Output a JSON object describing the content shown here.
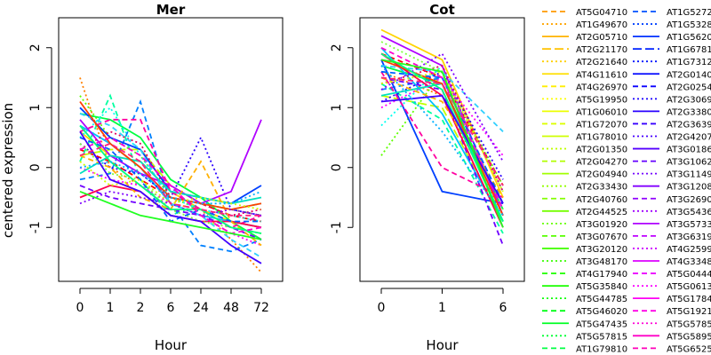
{
  "chart_data": [
    {
      "type": "line",
      "title": "Mer",
      "xlabel": "Hour",
      "ylabel": "centered expression",
      "x": [
        "0",
        "1",
        "2",
        "6",
        "24",
        "48",
        "72"
      ],
      "ylim": [
        -1.9,
        2.5
      ],
      "y_ticks": [
        "-1",
        "0",
        "1",
        "2"
      ],
      "grid": false,
      "series": [
        {
          "values": [
            0.3,
            0.1,
            -0.2,
            -0.5,
            -0.6,
            -0.8,
            -0.9
          ]
        },
        {
          "values": [
            1.5,
            0.0,
            -0.3,
            -0.6,
            -0.7,
            -1.2,
            -1.75
          ]
        },
        {
          "values": [
            0.6,
            0.2,
            0.1,
            -0.4,
            -0.7,
            -0.9,
            -1.0
          ]
        },
        {
          "values": [
            0.2,
            0.3,
            0.3,
            -0.3,
            -0.6,
            -0.7,
            -0.8
          ]
        },
        {
          "values": [
            1.2,
            0.5,
            0.2,
            -0.5,
            -0.7,
            -1.0,
            -1.1
          ]
        },
        {
          "values": [
            0.9,
            0.8,
            0.5,
            -0.2,
            -0.5,
            -0.9,
            -1.2
          ]
        },
        {
          "values": [
            0.1,
            1.2,
            -0.2,
            -0.8,
            -0.6,
            -0.7,
            -0.6
          ]
        },
        {
          "values": [
            0.5,
            1.0,
            0.2,
            -0.5,
            -0.7,
            -0.8,
            -0.9
          ]
        },
        {
          "values": [
            0.7,
            0.4,
            0.0,
            -0.6,
            -0.8,
            -0.9,
            -1.0
          ]
        },
        {
          "values": [
            -0.2,
            -0.1,
            1.1,
            -0.6,
            -1.3,
            -1.4,
            -1.2
          ]
        },
        {
          "values": [
            1.0,
            0.5,
            0.3,
            -0.4,
            -0.5,
            -0.6,
            -0.3
          ]
        },
        {
          "values": [
            0.4,
            0.0,
            -0.1,
            -0.5,
            0.5,
            -0.7,
            -0.8
          ]
        },
        {
          "values": [
            -0.3,
            -0.5,
            -0.6,
            -0.7,
            -0.8,
            -1.0,
            -1.2
          ]
        },
        {
          "values": [
            0.8,
            0.2,
            -0.1,
            -0.3,
            -0.6,
            -0.4,
            0.8
          ]
        },
        {
          "values": [
            0.0,
            -0.2,
            -0.3,
            -0.6,
            -0.8,
            -1.1,
            -1.3
          ]
        },
        {
          "values": [
            0.6,
            0.8,
            0.8,
            -0.4,
            -0.7,
            -1.0,
            -0.8
          ]
        },
        {
          "values": [
            -0.5,
            -0.3,
            -0.4,
            -0.8,
            -0.9,
            -0.9,
            -1.0
          ]
        },
        {
          "values": [
            0.3,
            0.6,
            0.4,
            -0.5,
            -0.6,
            -0.8,
            -0.7
          ]
        },
        {
          "values": [
            0.9,
            0.7,
            0.3,
            -0.6,
            -0.8,
            -1.2,
            -1.5
          ]
        },
        {
          "values": [
            -0.1,
            0.2,
            0.1,
            -0.4,
            -0.5,
            -0.6,
            -0.5
          ]
        },
        {
          "values": [
            0.4,
            -0.1,
            -0.2,
            -0.7,
            -0.9,
            -1.0,
            -1.1
          ]
        },
        {
          "values": [
            0.2,
            0.0,
            -0.5,
            -0.7,
            0.1,
            -0.9,
            -1.3
          ]
        },
        {
          "values": [
            1.1,
            0.4,
            0.0,
            -0.5,
            -0.6,
            -0.7,
            -0.6
          ]
        },
        {
          "values": [
            -0.6,
            -0.4,
            -0.5,
            -0.6,
            -0.8,
            -0.7,
            -0.8
          ]
        },
        {
          "values": [
            0.5,
            0.3,
            -0.2,
            -0.9,
            -0.7,
            -0.9,
            -0.9
          ]
        },
        {
          "values": [
            0.7,
            0.1,
            -0.3,
            -0.7,
            -0.7,
            -1.0,
            -1.1
          ]
        },
        {
          "values": [
            0.1,
            -0.3,
            -0.2,
            -0.6,
            -0.5,
            -0.6,
            -0.7
          ]
        },
        {
          "values": [
            0.3,
            0.5,
            0.2,
            -0.3,
            -0.8,
            -1.1,
            -1.0
          ]
        },
        {
          "values": [
            0.6,
            -0.2,
            -0.4,
            -0.8,
            -0.9,
            -1.3,
            -1.6
          ]
        },
        {
          "values": [
            0.0,
            0.1,
            -0.1,
            -0.5,
            -0.6,
            -0.6,
            -0.4
          ]
        },
        {
          "values": [
            0.2,
            0.4,
            0.1,
            -0.6,
            -0.7,
            -0.8,
            -0.8
          ]
        },
        {
          "values": [
            -0.4,
            -0.6,
            -0.8,
            -0.9,
            -1.0,
            -1.1,
            -1.2
          ]
        }
      ]
    },
    {
      "type": "line",
      "title": "Cot",
      "xlabel": "Hour",
      "ylabel": "",
      "x": [
        "0",
        "1",
        "6"
      ],
      "ylim": [
        -1.9,
        2.5
      ],
      "y_ticks": [
        "-1",
        "0",
        "1",
        "2"
      ],
      "grid": false,
      "series": [
        {
          "values": [
            1.9,
            1.5,
            -0.3
          ]
        },
        {
          "values": [
            1.6,
            1.2,
            -0.8
          ]
        },
        {
          "values": [
            2.3,
            1.8,
            -0.5
          ]
        },
        {
          "values": [
            1.2,
            1.0,
            -0.9
          ]
        },
        {
          "values": [
            0.2,
            1.6,
            -0.3
          ]
        },
        {
          "values": [
            1.7,
            1.4,
            -0.7
          ]
        },
        {
          "values": [
            1.4,
            0.8,
            -1.1
          ]
        },
        {
          "values": [
            0.7,
            1.7,
            -0.4
          ]
        },
        {
          "values": [
            2.0,
            0.9,
            -0.9
          ]
        },
        {
          "values": [
            1.3,
            1.5,
            -0.6
          ]
        },
        {
          "values": [
            1.8,
            -0.4,
            -0.6
          ]
        },
        {
          "values": [
            1.1,
            1.6,
            -0.2
          ]
        },
        {
          "values": [
            1.5,
            1.3,
            -1.3
          ]
        },
        {
          "values": [
            2.2,
            1.7,
            -0.8
          ]
        },
        {
          "values": [
            1.0,
            1.5,
            0.2
          ]
        },
        {
          "values": [
            1.6,
            0.0,
            -0.5
          ]
        },
        {
          "values": [
            1.9,
            1.2,
            -1.0
          ]
        },
        {
          "values": [
            1.4,
            1.7,
            -0.4
          ]
        },
        {
          "values": [
            1.7,
            1.6,
            0.6
          ]
        },
        {
          "values": [
            1.2,
            1.4,
            -0.9
          ]
        },
        {
          "values": [
            2.1,
            1.6,
            -0.7
          ]
        },
        {
          "values": [
            1.5,
            1.1,
            -0.5
          ]
        },
        {
          "values": [
            1.8,
            1.4,
            -0.8
          ]
        },
        {
          "values": [
            1.3,
            1.9,
            0.1
          ]
        },
        {
          "values": [
            1.6,
            1.5,
            -0.6
          ]
        },
        {
          "values": [
            1.9,
            1.3,
            -0.9
          ]
        },
        {
          "values": [
            1.4,
            1.6,
            -0.4
          ]
        },
        {
          "values": [
            2.0,
            1.5,
            -0.7
          ]
        },
        {
          "values": [
            1.1,
            1.2,
            -0.6
          ]
        },
        {
          "values": [
            1.7,
            0.6,
            -0.8
          ]
        },
        {
          "values": [
            1.5,
            1.4,
            -0.3
          ]
        },
        {
          "values": [
            1.8,
            1.6,
            -1.0
          ]
        }
      ]
    }
  ],
  "line_styles": [
    "dashed",
    "dotted",
    "solid",
    "longdash",
    "dotted",
    "solid",
    "dashed",
    "dotted",
    "solid",
    "dashed",
    "solid",
    "dotted",
    "dashed",
    "solid",
    "dotted",
    "dashed",
    "solid",
    "dotted",
    "dashed",
    "solid",
    "dotted",
    "dashed",
    "solid",
    "dotted",
    "dashed",
    "solid",
    "dotted",
    "dashed",
    "solid",
    "dotted",
    "dashed",
    "solid"
  ],
  "legend": {
    "placement": "right",
    "col1": [
      {
        "label": "AT5G04710",
        "color": "#ff9900",
        "style": "dashed"
      },
      {
        "label": "AT1G49670",
        "color": "#ffa500",
        "style": "dotted"
      },
      {
        "label": "AT2G05710",
        "color": "#ffb300",
        "style": "solid"
      },
      {
        "label": "AT2G21170",
        "color": "#ffc200",
        "style": "longdash"
      },
      {
        "label": "AT2G21640",
        "color": "#ffd000",
        "style": "dotted"
      },
      {
        "label": "AT4G11610",
        "color": "#ffdf00",
        "style": "solid"
      },
      {
        "label": "AT4G26970",
        "color": "#ffee00",
        "style": "dashed"
      },
      {
        "label": "AT5G19950",
        "color": "#fbff00",
        "style": "dotted"
      },
      {
        "label": "AT1G06010",
        "color": "#ecff00",
        "style": "solid"
      },
      {
        "label": "AT1G72070",
        "color": "#ddff00",
        "style": "dashed"
      },
      {
        "label": "AT1G78010",
        "color": "#cfff00",
        "style": "solid"
      },
      {
        "label": "AT2G01350",
        "color": "#c0ff00",
        "style": "dotted"
      },
      {
        "label": "AT2G04270",
        "color": "#b1ff00",
        "style": "dashed"
      },
      {
        "label": "AT2G04940",
        "color": "#a2ff00",
        "style": "solid"
      },
      {
        "label": "AT2G33430",
        "color": "#93ff00",
        "style": "dotted"
      },
      {
        "label": "AT2G40760",
        "color": "#84ff00",
        "style": "dashed"
      },
      {
        "label": "AT2G44525",
        "color": "#75ff00",
        "style": "solid"
      },
      {
        "label": "AT3G01920",
        "color": "#66ff00",
        "style": "dotted"
      },
      {
        "label": "AT3G07670",
        "color": "#57ff00",
        "style": "dashed"
      },
      {
        "label": "AT3G20120",
        "color": "#48ff00",
        "style": "solid"
      },
      {
        "label": "AT3G48170",
        "color": "#39ff00",
        "style": "dotted"
      },
      {
        "label": "AT4G17940",
        "color": "#2aff00",
        "style": "dashed"
      },
      {
        "label": "AT5G35840",
        "color": "#1bff00",
        "style": "solid"
      },
      {
        "label": "AT5G44785",
        "color": "#0cff06",
        "style": "dotted"
      },
      {
        "label": "AT5G46020",
        "color": "#00ff15",
        "style": "dashed"
      },
      {
        "label": "AT5G47435",
        "color": "#00ff24",
        "style": "solid"
      },
      {
        "label": "AT5G57815",
        "color": "#00ff33",
        "style": "dotted"
      },
      {
        "label": "AT1G79810",
        "color": "#00ff42",
        "style": "dashed"
      }
    ],
    "col2": [
      {
        "label": "AT1G5272",
        "color": "#0050ff",
        "style": "dashed"
      },
      {
        "label": "AT1G5328",
        "color": "#0041ff",
        "style": "dotted"
      },
      {
        "label": "AT1G5620",
        "color": "#0032ff",
        "style": "solid"
      },
      {
        "label": "AT1G6781",
        "color": "#0023ff",
        "style": "longdash"
      },
      {
        "label": "AT1G7312",
        "color": "#0014ff",
        "style": "dotted"
      },
      {
        "label": "AT2G0140",
        "color": "#0005ff",
        "style": "solid"
      },
      {
        "label": "AT2G0254",
        "color": "#0a00ff",
        "style": "dashed"
      },
      {
        "label": "AT2G3069",
        "color": "#1900ff",
        "style": "dotted"
      },
      {
        "label": "AT2G3380",
        "color": "#2800ff",
        "style": "solid"
      },
      {
        "label": "AT2G3639",
        "color": "#3700ff",
        "style": "dashed"
      },
      {
        "label": "AT2G4207",
        "color": "#4600ff",
        "style": "dotted"
      },
      {
        "label": "AT3G0186",
        "color": "#5500ff",
        "style": "solid"
      },
      {
        "label": "AT3G1062",
        "color": "#6400ff",
        "style": "dashed"
      },
      {
        "label": "AT3G1149",
        "color": "#7300ff",
        "style": "dotted"
      },
      {
        "label": "AT3G1208",
        "color": "#8200ff",
        "style": "solid"
      },
      {
        "label": "AT3G2690",
        "color": "#9100ff",
        "style": "dashed"
      },
      {
        "label": "AT3G5436",
        "color": "#a000ff",
        "style": "dotted"
      },
      {
        "label": "AT3G5733",
        "color": "#af00ff",
        "style": "solid"
      },
      {
        "label": "AT3G6319",
        "color": "#be00ff",
        "style": "dashed"
      },
      {
        "label": "AT4G2599",
        "color": "#cd00ff",
        "style": "dotted"
      },
      {
        "label": "AT4G3348",
        "color": "#dc00ff",
        "style": "solid"
      },
      {
        "label": "AT5G0444",
        "color": "#eb00ff",
        "style": "dashed"
      },
      {
        "label": "AT5G0613",
        "color": "#fa00ff",
        "style": "dotted"
      },
      {
        "label": "AT5G1784",
        "color": "#ff00f5",
        "style": "solid"
      },
      {
        "label": "AT5G1921",
        "color": "#ff00e6",
        "style": "dashed"
      },
      {
        "label": "AT5G5785",
        "color": "#ff00d7",
        "style": "dotted"
      },
      {
        "label": "AT5G5895",
        "color": "#ff00c8",
        "style": "solid"
      },
      {
        "label": "AT5G6525",
        "color": "#ff00b9",
        "style": "dashed"
      }
    ]
  },
  "palette": [
    "#ff0000",
    "#ff7f00",
    "#ffd400",
    "#c0ff00",
    "#5fff00",
    "#00ff40",
    "#00ffa0",
    "#00fff0",
    "#00c0ff",
    "#0080ff",
    "#0040ff",
    "#2a00ff",
    "#7000ff",
    "#b000ff",
    "#ff00ff",
    "#ff00a0",
    "#ff0050",
    "#e00060",
    "#30d0ff",
    "#00e0c0",
    "#80ff40",
    "#ffb000",
    "#ff4000",
    "#8000ff",
    "#0060ff",
    "#00ff80",
    "#d0ff00",
    "#ff00d0",
    "#4000ff",
    "#00b0ff",
    "#ff2080",
    "#20ff20"
  ]
}
